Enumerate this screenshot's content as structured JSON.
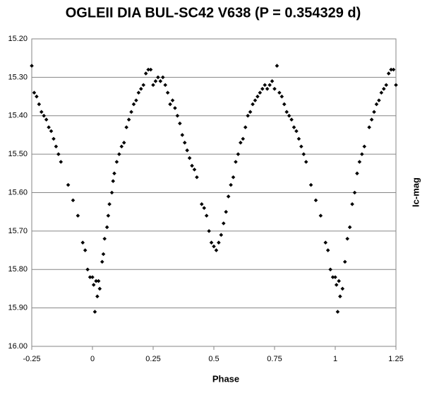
{
  "chart_data": {
    "type": "scatter",
    "title": "OGLEII DIA BUL-SC42 V638 (P = 0.354329 d)",
    "x_label": "Phase",
    "y_label": "Ic-mag",
    "color": "#000000",
    "grid": true,
    "xlim": [
      -0.25,
      1.25
    ],
    "xticks": [
      -0.25,
      0,
      0.25,
      0.5,
      0.75,
      1,
      1.25
    ],
    "ylim": [
      16.0,
      15.2
    ],
    "yticks": [
      {
        "value": 15.2,
        "label": "15.20"
      },
      {
        "value": 15.3,
        "label": "15.30"
      },
      {
        "value": 15.4,
        "label": "15.40"
      },
      {
        "value": 15.5,
        "label": "15.50"
      },
      {
        "value": 15.6,
        "label": "15.60"
      },
      {
        "value": 15.7,
        "label": "15.70"
      },
      {
        "value": 15.8,
        "label": "15.80"
      },
      {
        "value": 15.9,
        "label": "15.90"
      },
      {
        "value": 16.0,
        "label": "16.00"
      }
    ],
    "x": [
      -0.25,
      -0.24,
      -0.23,
      -0.22,
      -0.21,
      -0.2,
      -0.19,
      -0.18,
      -0.17,
      -0.16,
      -0.15,
      -0.14,
      -0.13,
      -0.1,
      -0.08,
      -0.06,
      -0.04,
      -0.03,
      -0.02,
      -0.01,
      0,
      0.005,
      0.01,
      0.015,
      0.02,
      0.025,
      0.03,
      0.04,
      0.045,
      0.05,
      0.06,
      0.065,
      0.07,
      0.08,
      0.085,
      0.09,
      0.1,
      0.11,
      0.12,
      0.13,
      0.14,
      0.15,
      0.16,
      0.17,
      0.18,
      0.19,
      0.2,
      0.21,
      0.22,
      0.23,
      0.24,
      0.25,
      0.26,
      0.27,
      0.28,
      0.29,
      0.3,
      0.31,
      0.32,
      0.33,
      0.34,
      0.35,
      0.36,
      0.37,
      0.38,
      0.39,
      0.4,
      0.41,
      0.42,
      0.43,
      0.45,
      0.46,
      0.47,
      0.48,
      0.49,
      0.5,
      0.51,
      0.52,
      0.53,
      0.54,
      0.55,
      0.56,
      0.57,
      0.58,
      0.59,
      0.6,
      0.61,
      0.62,
      0.63,
      0.64,
      0.65,
      0.66,
      0.67,
      0.68,
      0.69,
      0.7,
      0.71,
      0.72,
      0.73,
      0.74,
      0.75,
      0.76,
      0.77,
      0.78,
      0.79,
      0.8,
      0.81,
      0.82,
      0.83,
      0.84,
      0.85,
      0.86,
      0.87,
      0.88,
      0.9,
      0.92,
      0.94,
      0.96,
      0.97,
      0.98,
      0.99,
      1,
      1.005,
      1.01,
      1.015,
      1.02,
      1.03,
      1.04,
      1.05,
      1.06,
      1.07,
      1.08,
      1.09,
      1.1,
      1.11,
      1.12,
      1.14,
      1.15,
      1.16,
      1.17,
      1.18,
      1.19,
      1.2,
      1.21,
      1.22,
      1.23,
      1.24,
      1.25
    ],
    "values": [
      15.27,
      15.34,
      15.35,
      15.37,
      15.39,
      15.4,
      15.41,
      15.43,
      15.44,
      15.46,
      15.48,
      15.5,
      15.52,
      15.58,
      15.62,
      15.66,
      15.73,
      15.75,
      15.8,
      15.82,
      15.82,
      15.84,
      15.91,
      15.83,
      15.87,
      15.83,
      15.85,
      15.78,
      15.76,
      15.72,
      15.69,
      15.66,
      15.63,
      15.6,
      15.57,
      15.55,
      15.52,
      15.5,
      15.48,
      15.47,
      15.43,
      15.41,
      15.39,
      15.37,
      15.36,
      15.34,
      15.33,
      15.32,
      15.29,
      15.28,
      15.28,
      15.32,
      15.31,
      15.3,
      15.31,
      15.3,
      15.32,
      15.34,
      15.37,
      15.36,
      15.38,
      15.4,
      15.42,
      15.45,
      15.47,
      15.49,
      15.51,
      15.53,
      15.54,
      15.56,
      15.63,
      15.64,
      15.66,
      15.7,
      15.73,
      15.74,
      15.75,
      15.73,
      15.71,
      15.68,
      15.65,
      15.61,
      15.58,
      15.56,
      15.52,
      15.5,
      15.47,
      15.46,
      15.43,
      15.4,
      15.39,
      15.37,
      15.36,
      15.35,
      15.34,
      15.33,
      15.32,
      15.33,
      15.32,
      15.31,
      15.33,
      15.27,
      15.34,
      15.35,
      15.37,
      15.39,
      15.4,
      15.41,
      15.43,
      15.44,
      15.46,
      15.48,
      15.5,
      15.52,
      15.58,
      15.62,
      15.66,
      15.73,
      15.75,
      15.8,
      15.82,
      15.82,
      15.84,
      15.91,
      15.83,
      15.87,
      15.85,
      15.78,
      15.72,
      15.69,
      15.63,
      15.6,
      15.55,
      15.52,
      15.5,
      15.48,
      15.43,
      15.41,
      15.39,
      15.37,
      15.36,
      15.34,
      15.33,
      15.32,
      15.29,
      15.28,
      15.28,
      15.32
    ]
  }
}
